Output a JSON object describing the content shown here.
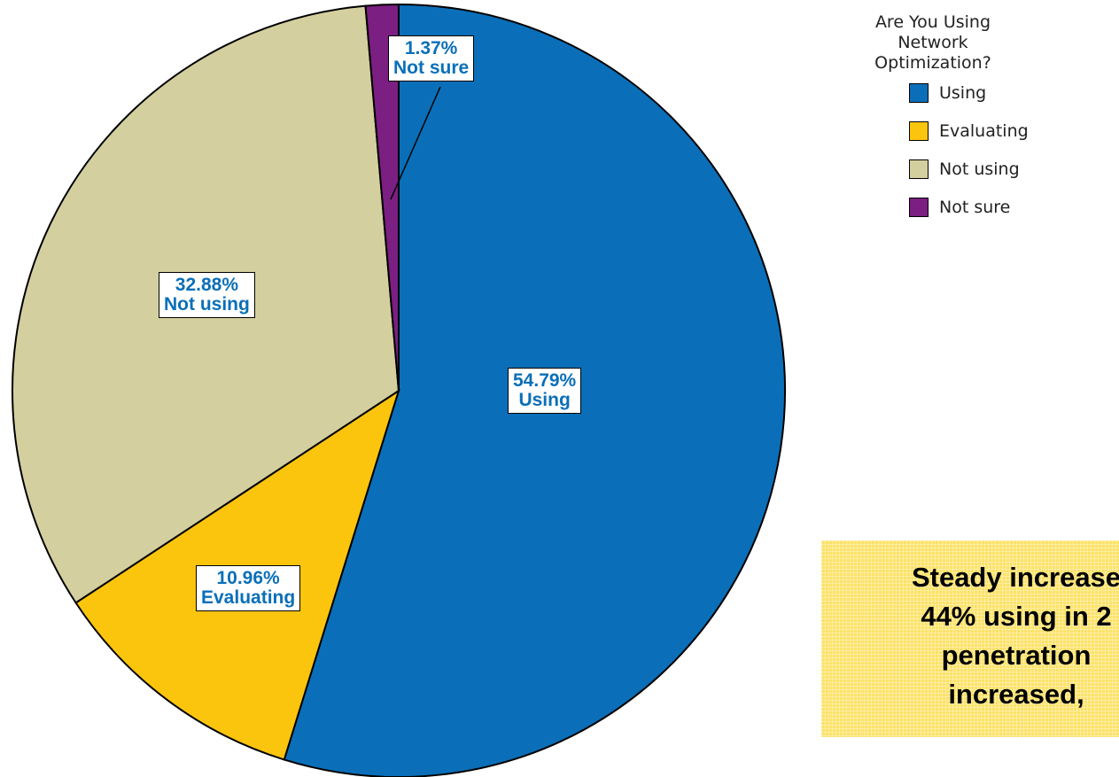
{
  "chart_data": {
    "type": "pie",
    "title": "",
    "legend_title": "Are You Using Network Optimization?",
    "legend_placement": "top-right",
    "start_angle_deg": 0,
    "direction": "clockwise",
    "slices": [
      {
        "name": "Using",
        "value": 54.79,
        "label": "54.79%",
        "color": "#0a6fb8"
      },
      {
        "name": "Evaluating",
        "value": 10.96,
        "label": "10.96%",
        "color": "#fcc50d"
      },
      {
        "name": "Not using",
        "value": 32.88,
        "label": "32.88%",
        "color": "#d4cf9e"
      },
      {
        "name": "Not sure",
        "value": 1.37,
        "label": "1.37%",
        "color": "#7b1f82"
      }
    ]
  },
  "legend": {
    "title": "Are You Using Network Optimization?",
    "items": [
      "Using",
      "Evaluating",
      "Not using",
      "Not sure"
    ]
  },
  "callout": {
    "lines": [
      "Steady increase",
      "44% using in 2",
      "penetration",
      "increased,"
    ]
  }
}
